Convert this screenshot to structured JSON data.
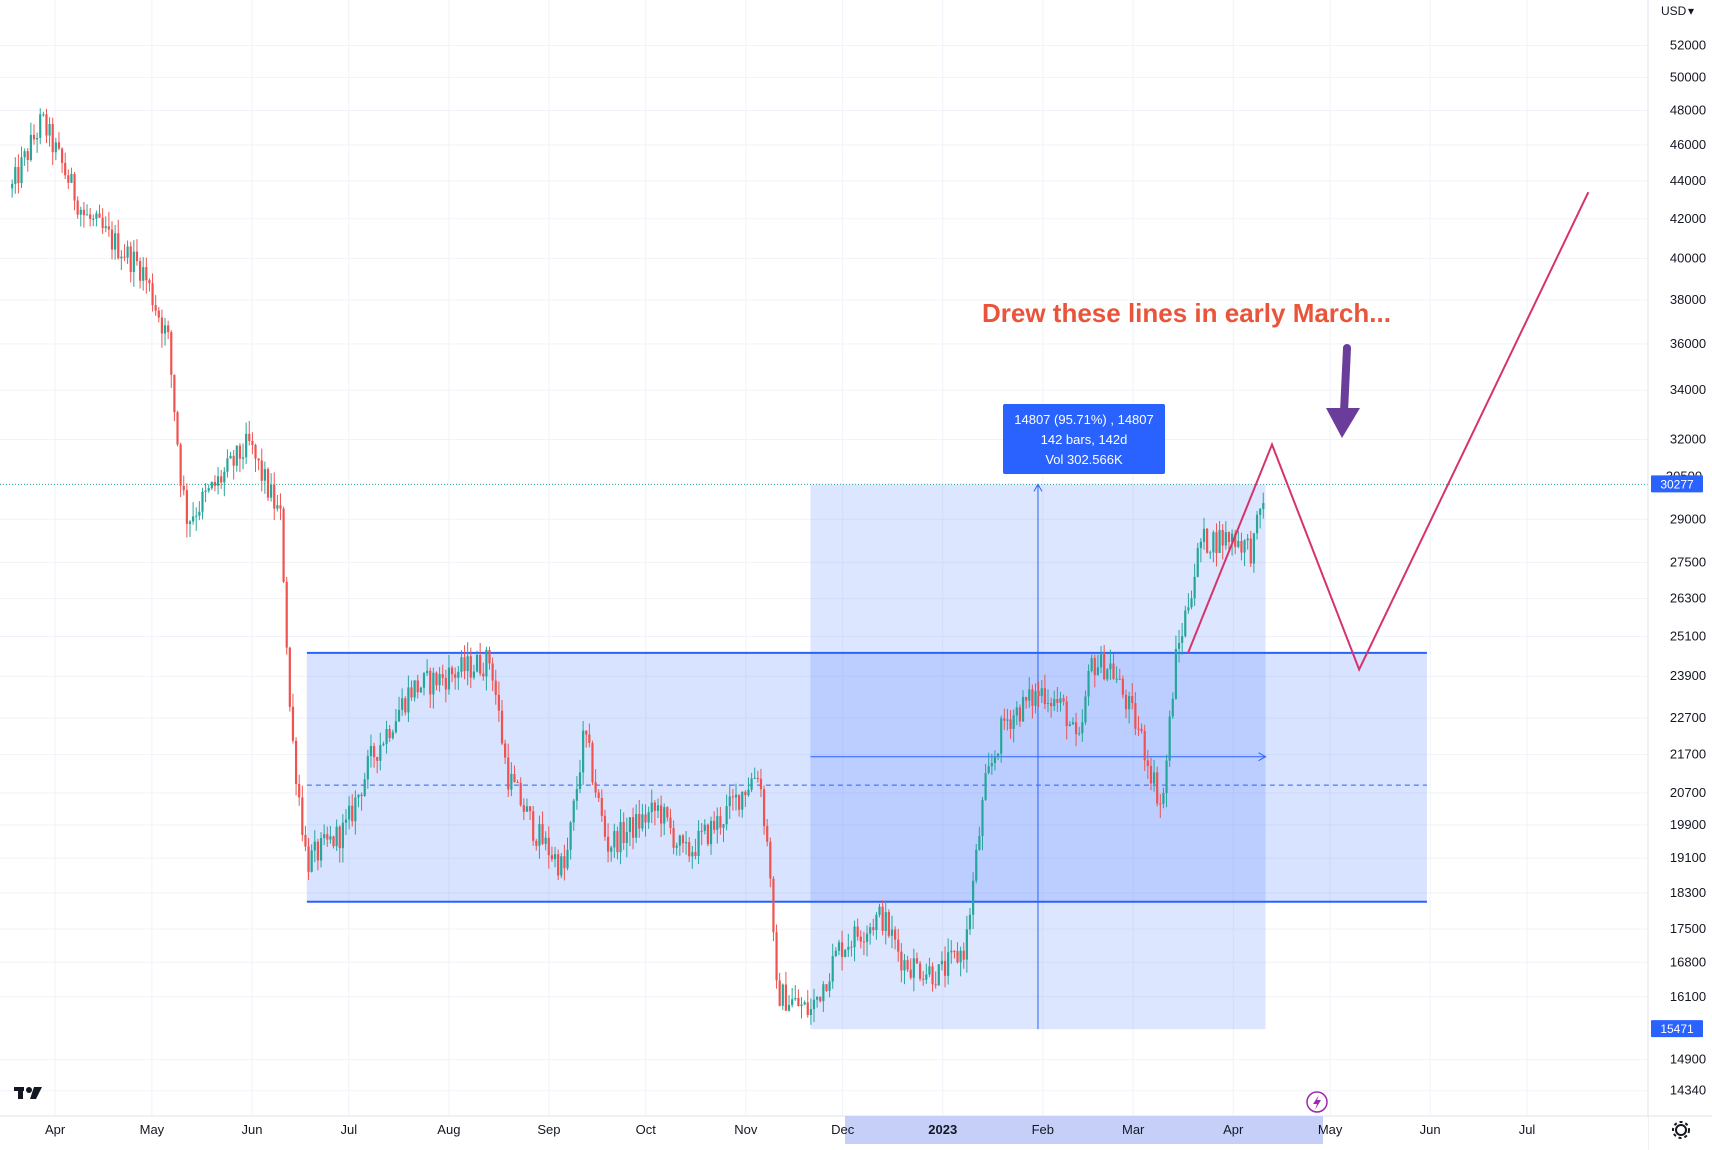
{
  "currency_label": "USD",
  "chart_data": {
    "type": "candlestick",
    "y_scale": "log",
    "ylim": [
      13900,
      55000
    ],
    "price_ticks": [
      52000,
      50000,
      48000,
      46000,
      44000,
      42000,
      40000,
      38000,
      36000,
      34000,
      32000,
      29000,
      27500,
      26300,
      25100,
      23900,
      22700,
      21700,
      20700,
      19900,
      19100,
      18300,
      17500,
      16800,
      16100,
      14900,
      14340
    ],
    "partial_tick": "30500",
    "time_axis": [
      "Apr",
      "May",
      "Jun",
      "Jul",
      "Aug",
      "Sep",
      "Oct",
      "Nov",
      "Dec",
      "2023",
      "Feb",
      "Mar",
      "Apr",
      "May",
      "Jun",
      "Jul"
    ],
    "time_axis_bold": "2023",
    "colors": {
      "up": "#26a69a",
      "down": "#ef5350",
      "range_box": "#2962ff",
      "projection": "#d6336c",
      "arrow": "#6a3d9a",
      "note": "#e8553a"
    },
    "price_key_points": [
      {
        "date": "2022-03-28",
        "price": 47400
      },
      {
        "date": "2022-04-10",
        "price": 42200
      },
      {
        "date": "2022-04-28",
        "price": 39500
      },
      {
        "date": "2022-05-06",
        "price": 36200
      },
      {
        "date": "2022-05-10",
        "price": 30500
      },
      {
        "date": "2022-05-12",
        "price": 29000
      },
      {
        "date": "2022-05-31",
        "price": 31800
      },
      {
        "date": "2022-06-10",
        "price": 29000
      },
      {
        "date": "2022-06-13",
        "price": 22500
      },
      {
        "date": "2022-06-18",
        "price": 19000
      },
      {
        "date": "2022-06-30",
        "price": 19800
      },
      {
        "date": "2022-07-08",
        "price": 21600
      },
      {
        "date": "2022-07-20",
        "price": 23500
      },
      {
        "date": "2022-07-28",
        "price": 23800
      },
      {
        "date": "2022-08-14",
        "price": 24400
      },
      {
        "date": "2022-08-19",
        "price": 21200
      },
      {
        "date": "2022-08-28",
        "price": 19700
      },
      {
        "date": "2022-09-06",
        "price": 18800
      },
      {
        "date": "2022-09-12",
        "price": 22300
      },
      {
        "date": "2022-09-19",
        "price": 19400
      },
      {
        "date": "2022-10-05",
        "price": 20300
      },
      {
        "date": "2022-10-13",
        "price": 19150
      },
      {
        "date": "2022-10-25",
        "price": 20100
      },
      {
        "date": "2022-11-05",
        "price": 21300
      },
      {
        "date": "2022-11-09",
        "price": 18500
      },
      {
        "date": "2022-11-10",
        "price": 16200
      },
      {
        "date": "2022-11-21",
        "price": 15800
      },
      {
        "date": "2022-11-30",
        "price": 17100
      },
      {
        "date": "2022-12-13",
        "price": 17800
      },
      {
        "date": "2022-12-20",
        "price": 16800
      },
      {
        "date": "2022-12-31",
        "price": 16550
      },
      {
        "date": "2023-01-08",
        "price": 17100
      },
      {
        "date": "2023-01-14",
        "price": 20800
      },
      {
        "date": "2023-01-20",
        "price": 22600
      },
      {
        "date": "2023-02-01",
        "price": 23500
      },
      {
        "date": "2023-02-08",
        "price": 22900
      },
      {
        "date": "2023-02-12",
        "price": 21800
      },
      {
        "date": "2023-02-16",
        "price": 24300
      },
      {
        "date": "2023-02-22",
        "price": 24200
      },
      {
        "date": "2023-03-03",
        "price": 22300
      },
      {
        "date": "2023-03-10",
        "price": 20300
      },
      {
        "date": "2023-03-14",
        "price": 24300
      },
      {
        "date": "2023-03-22",
        "price": 28200
      },
      {
        "date": "2023-04-01",
        "price": 28400
      },
      {
        "date": "2023-04-07",
        "price": 27900
      },
      {
        "date": "2023-04-11",
        "price": 30277
      }
    ],
    "range_rectangle": {
      "start": "2022-06-18",
      "end": "2023-05-31",
      "top": 24600,
      "bottom": 18100
    },
    "range_midline": 20900,
    "measure_box": {
      "start": "2022-11-21",
      "end": "2023-04-11",
      "low": 15471,
      "high": 30277
    },
    "measure_tooltip": [
      "14807 (95.71%) , 14807",
      "142 bars, 142d",
      "Vol 302.566K"
    ],
    "projection_path": [
      {
        "date": "2023-03-18",
        "price": 24600
      },
      {
        "date": "2023-04-13",
        "price": 31800
      },
      {
        "date": "2023-05-10",
        "price": 24100
      },
      {
        "date": "2023-07-20",
        "price": 43400
      }
    ],
    "annotation": "Drew these lines in early March...",
    "price_tags": [
      {
        "value": "30277",
        "color": "#2962ff"
      },
      {
        "value": "15471",
        "color": "#2962ff"
      }
    ]
  }
}
